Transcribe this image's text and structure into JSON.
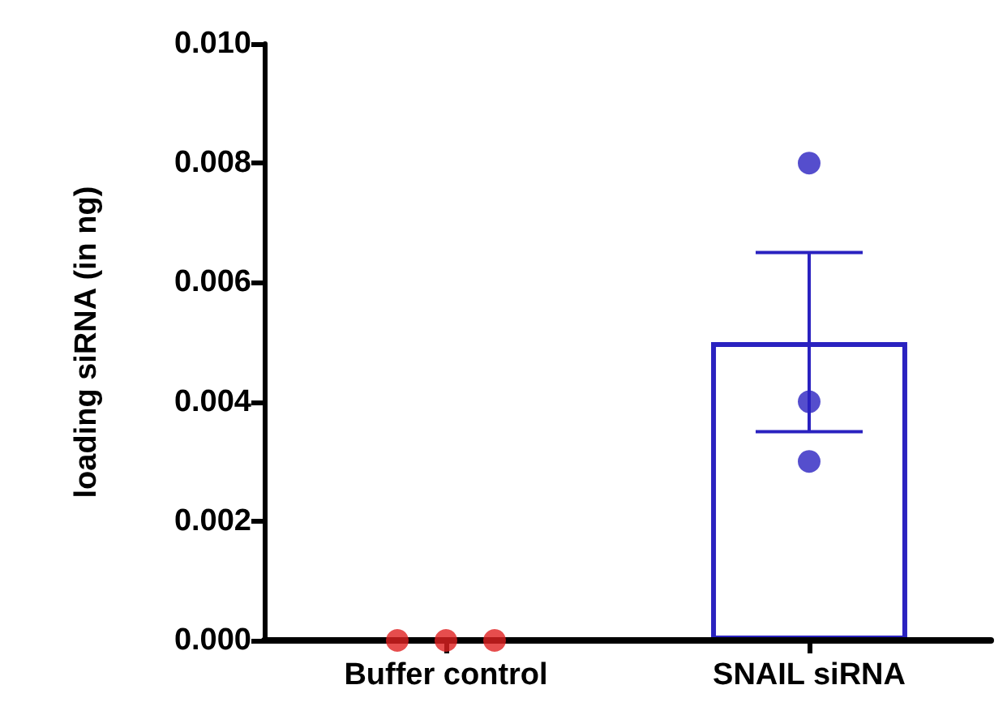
{
  "chart_data": {
    "type": "bar",
    "ylabel": "loading siRNA (in ng)",
    "categories": [
      "Buffer control",
      "SNAIL siRNA"
    ],
    "series": [
      {
        "values": [
          0,
          0.005
        ],
        "colors": [
          "#e02020",
          "#2a22c0"
        ],
        "errors": [
          null,
          0.0015
        ]
      },
      {
        "type": "scatter",
        "color": "#e02020",
        "x": [
          "Buffer control",
          "Buffer control",
          "Buffer control"
        ],
        "values": [
          0,
          0,
          0
        ]
      },
      {
        "type": "scatter",
        "color": "#2a22c0",
        "x": [
          "SNAIL siRNA",
          "SNAIL siRNA",
          "SNAIL siRNA"
        ],
        "values": [
          0.008,
          0.004,
          0.003
        ]
      }
    ],
    "ylim": [
      0,
      0.01
    ],
    "yticks": [
      {
        "value": 0,
        "label": "0.000"
      },
      {
        "value": 0.002,
        "label": "0.002"
      },
      {
        "value": 0.004,
        "label": "0.004"
      },
      {
        "value": 0.006,
        "label": "0.006"
      },
      {
        "value": 0.008,
        "label": "0.008"
      },
      {
        "value": 0.01,
        "label": "0.010"
      }
    ],
    "grid": false,
    "marker": "circle"
  }
}
